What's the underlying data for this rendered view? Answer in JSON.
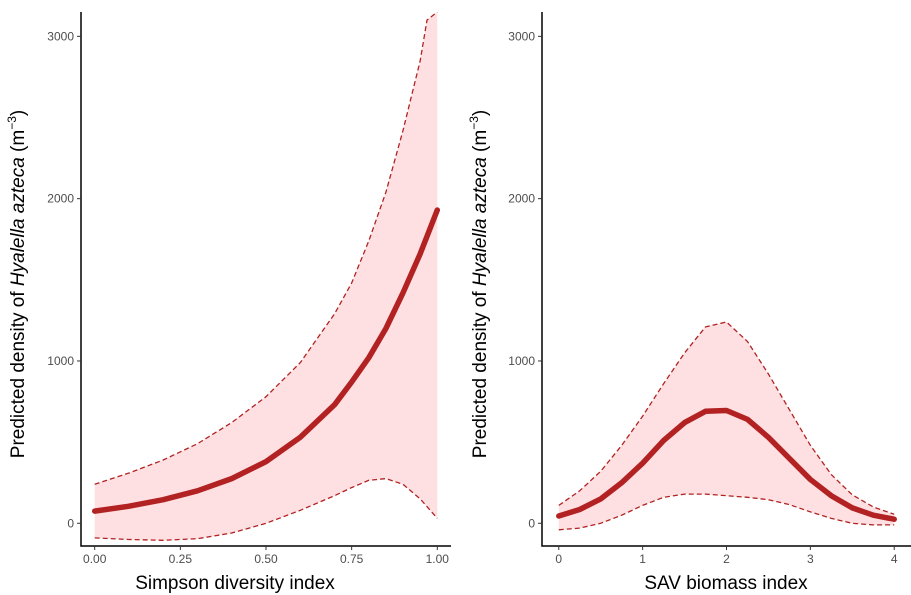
{
  "chart_data": [
    {
      "type": "line",
      "xlabel": "Simpson diversity index",
      "ylabel": {
        "prefix": "Predicted density of ",
        "species": "Hyalella azteca",
        "unit_open": " (m",
        "unit_exp": "−3",
        "unit_close": ")"
      },
      "xlim": [
        -0.04,
        1.04
      ],
      "ylim": [
        -140,
        3150
      ],
      "x_ticks": [
        0,
        0.25,
        0.5,
        0.75,
        1
      ],
      "x_tick_labels": [
        "0.00",
        "0.25",
        "0.50",
        "0.75",
        "1.00"
      ],
      "y_ticks": [
        0,
        1000,
        2000,
        3000
      ],
      "y_tick_labels": [
        "0",
        "1000",
        "2000",
        "3000"
      ],
      "grid": false,
      "colors": {
        "line": "#b22222",
        "band": "#ffe0e2"
      },
      "series": [
        {
          "role": "fit",
          "x": [
            0,
            0.1,
            0.2,
            0.3,
            0.4,
            0.5,
            0.6,
            0.7,
            0.75,
            0.8,
            0.85,
            0.9,
            0.95,
            1.0
          ],
          "values": [
            75,
            105,
            145,
            200,
            275,
            380,
            530,
            730,
            870,
            1020,
            1200,
            1420,
            1660,
            1930
          ]
        },
        {
          "role": "upper",
          "x": [
            0,
            0.1,
            0.2,
            0.3,
            0.4,
            0.5,
            0.6,
            0.7,
            0.75,
            0.8,
            0.85,
            0.9,
            0.95,
            0.97,
            1.0
          ],
          "values": [
            240,
            310,
            390,
            490,
            620,
            780,
            990,
            1290,
            1480,
            1740,
            2040,
            2420,
            2850,
            3100,
            3150
          ]
        },
        {
          "role": "lower",
          "x": [
            0,
            0.1,
            0.2,
            0.3,
            0.4,
            0.5,
            0.6,
            0.7,
            0.75,
            0.8,
            0.85,
            0.9,
            0.95,
            1.0
          ],
          "values": [
            -90,
            -100,
            -105,
            -95,
            -60,
            0,
            80,
            170,
            220,
            265,
            275,
            240,
            150,
            30
          ]
        }
      ]
    },
    {
      "type": "line",
      "xlabel": "SAV biomass index",
      "ylabel": {
        "prefix": "Predicted density of ",
        "species": "Hyalella azteca",
        "unit_open": " (m",
        "unit_exp": "−3",
        "unit_close": ")"
      },
      "xlim": [
        -0.2,
        4.2
      ],
      "ylim": [
        -140,
        3150
      ],
      "x_ticks": [
        0,
        1,
        2,
        3,
        4
      ],
      "x_tick_labels": [
        "0",
        "1",
        "2",
        "3",
        "4"
      ],
      "y_ticks": [
        0,
        1000,
        2000,
        3000
      ],
      "y_tick_labels": [
        "0",
        "1000",
        "2000",
        "3000"
      ],
      "grid": false,
      "colors": {
        "line": "#b22222",
        "band": "#ffe0e2"
      },
      "series": [
        {
          "role": "fit",
          "x": [
            0,
            0.25,
            0.5,
            0.75,
            1.0,
            1.25,
            1.5,
            1.75,
            2.0,
            2.25,
            2.5,
            2.75,
            3.0,
            3.25,
            3.5,
            3.75,
            4.0
          ],
          "values": [
            45,
            85,
            150,
            250,
            370,
            510,
            620,
            690,
            695,
            640,
            530,
            400,
            270,
            170,
            95,
            50,
            25
          ]
        },
        {
          "role": "upper",
          "x": [
            0,
            0.25,
            0.5,
            0.75,
            1.0,
            1.25,
            1.5,
            1.75,
            2.0,
            2.25,
            2.5,
            2.75,
            3.0,
            3.25,
            3.5,
            3.75,
            4.0
          ],
          "values": [
            110,
            200,
            320,
            480,
            660,
            860,
            1050,
            1210,
            1240,
            1120,
            920,
            700,
            480,
            300,
            175,
            100,
            55
          ]
        },
        {
          "role": "lower",
          "x": [
            0,
            0.25,
            0.5,
            0.75,
            1.0,
            1.25,
            1.5,
            1.75,
            2.0,
            2.25,
            2.5,
            2.75,
            3.0,
            3.25,
            3.5,
            3.75,
            4.0
          ],
          "values": [
            -40,
            -30,
            0,
            50,
            110,
            160,
            180,
            180,
            170,
            160,
            145,
            115,
            70,
            30,
            0,
            -10,
            -10
          ]
        }
      ]
    }
  ]
}
